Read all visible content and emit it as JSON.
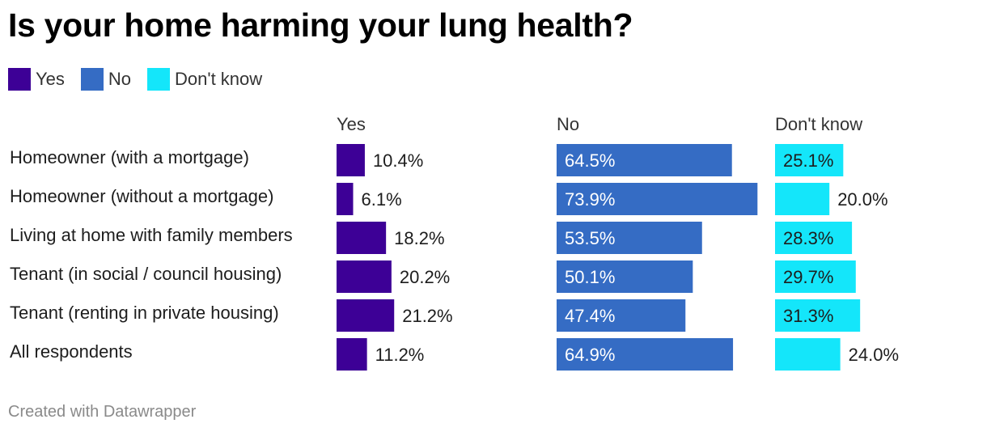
{
  "title": "Is your home harming your lung health?",
  "footer": "Created with Datawrapper",
  "colors": {
    "yes": "#3d0096",
    "no": "#356cc4",
    "dont_know": "#14e6fa"
  },
  "legend": [
    {
      "label": "Yes",
      "color": "#3d0096"
    },
    {
      "label": "No",
      "color": "#356cc4"
    },
    {
      "label": "Don't know",
      "color": "#14e6fa"
    }
  ],
  "chart_data": {
    "type": "bar",
    "orientation": "horizontal",
    "layout": "split-bars",
    "categories": [
      "Homeowner (with a mortgage)",
      "Homeowner (without a mortgage)",
      "Living at home with family members",
      "Tenant (in social / council housing)",
      "Tenant (renting in private housing)",
      "All respondents"
    ],
    "series": [
      {
        "name": "Yes",
        "values": [
          10.4,
          6.1,
          18.2,
          20.2,
          21.2,
          11.2
        ],
        "labels": [
          "10.4%",
          "6.1%",
          "18.2%",
          "20.2%",
          "21.2%",
          "11.2%"
        ]
      },
      {
        "name": "No",
        "values": [
          64.5,
          73.9,
          53.5,
          50.1,
          47.4,
          64.9
        ],
        "labels": [
          "64.5%",
          "73.9%",
          "53.5%",
          "50.1%",
          "47.4%",
          "64.9%"
        ]
      },
      {
        "name": "Don't know",
        "values": [
          25.1,
          20.0,
          28.3,
          29.7,
          31.3,
          24.0
        ],
        "labels": [
          "25.1%",
          "20.0%",
          "28.3%",
          "29.7%",
          "31.3%",
          "24.0%"
        ]
      }
    ],
    "unit": "%",
    "legend_position": "top-left",
    "grid": false
  }
}
